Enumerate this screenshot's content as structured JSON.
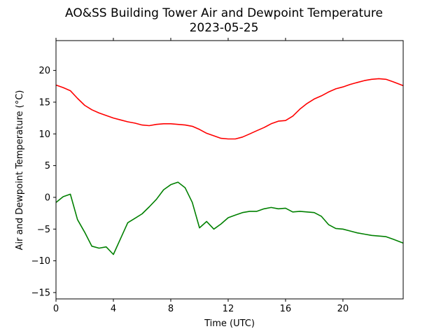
{
  "chart_data": {
    "type": "line",
    "title": "AO&SS Building Tower Air and Dewpoint Temperature",
    "subtitle": "2023-05-25",
    "xlabel": "Time (UTC)",
    "ylabel": "Air and Dewpoint Temperature (°C)",
    "xlim": [
      0,
      24.2
    ],
    "ylim": [
      -16,
      24.7
    ],
    "xticks": [
      0,
      4,
      8,
      12,
      16,
      20
    ],
    "yticks": [
      -15,
      -10,
      -5,
      0,
      5,
      10,
      15,
      20
    ],
    "grid": false,
    "colors": {
      "air": "#ff0000",
      "dewpoint": "#008000"
    },
    "x": [
      0,
      0.5,
      1,
      1.5,
      2,
      2.5,
      3,
      3.5,
      4,
      4.5,
      5,
      5.5,
      6,
      6.5,
      7,
      7.5,
      8,
      8.5,
      9,
      9.5,
      10,
      10.5,
      11,
      11.5,
      12,
      12.5,
      13,
      13.5,
      14,
      14.5,
      15,
      15.5,
      16,
      16.5,
      17,
      17.5,
      18,
      18.5,
      19,
      19.5,
      20,
      20.5,
      21,
      21.5,
      22,
      22.5,
      23,
      23.5,
      24.2
    ],
    "series": [
      {
        "key": "air",
        "values": [
          17.7,
          17.3,
          16.8,
          15.6,
          14.5,
          13.8,
          13.3,
          12.9,
          12.5,
          12.2,
          11.9,
          11.7,
          11.4,
          11.3,
          11.5,
          11.6,
          11.6,
          11.5,
          11.4,
          11.2,
          10.7,
          10.1,
          9.7,
          9.3,
          9.2,
          9.2,
          9.5,
          10.0,
          10.5,
          11.0,
          11.6,
          12.0,
          12.1,
          12.8,
          13.9,
          14.8,
          15.5,
          16.0,
          16.6,
          17.1,
          17.4,
          17.8,
          18.1,
          18.4,
          18.6,
          18.7,
          18.6,
          18.2,
          17.6
        ]
      },
      {
        "key": "dewpoint",
        "values": [
          -0.8,
          0.1,
          0.5,
          -3.5,
          -5.5,
          -7.7,
          -8.0,
          -7.8,
          -9.0,
          -6.5,
          -4.0,
          -3.3,
          -2.6,
          -1.5,
          -0.3,
          1.2,
          2.0,
          2.4,
          1.5,
          -0.8,
          -4.8,
          -3.8,
          -5.0,
          -4.2,
          -3.2,
          -2.8,
          -2.4,
          -2.2,
          -2.2,
          -1.8,
          -1.6,
          -1.8,
          -1.7,
          -2.3,
          -2.2,
          -2.3,
          -2.4,
          -3.0,
          -4.3,
          -4.9,
          -5.0,
          -5.3,
          -5.6,
          -5.8,
          -6.0,
          -6.1,
          -6.2,
          -6.6,
          -7.2
        ]
      }
    ]
  }
}
